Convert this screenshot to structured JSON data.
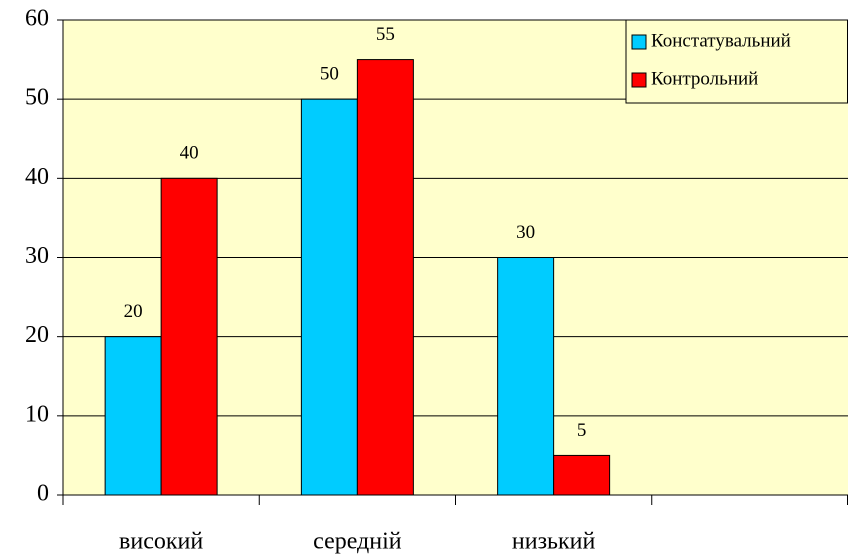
{
  "chart_data": {
    "type": "bar",
    "categories": [
      "високий",
      "середній",
      "низький",
      null
    ],
    "series": [
      {
        "name": "Констатувальний",
        "color": "#00ccff",
        "values": [
          20,
          50,
          30,
          null
        ]
      },
      {
        "name": "Контрольний",
        "color": "#ff0000",
        "values": [
          40,
          55,
          5,
          null
        ]
      }
    ],
    "ylim": [
      0,
      60
    ],
    "yticks": [
      0,
      10,
      20,
      30,
      40,
      50,
      60
    ],
    "grid": true,
    "legend": "top-right",
    "plot_background": "#ffffcc"
  }
}
